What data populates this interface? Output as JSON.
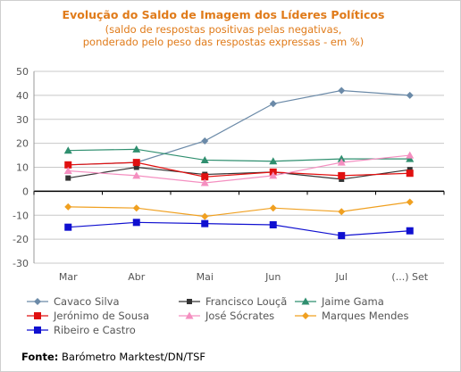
{
  "chart_data": {
    "type": "line",
    "title": "Evolução do Saldo  de Imagem dos Líderes Políticos",
    "subtitle_line1": "(saldo de respostas positivas pelas negativas,",
    "subtitle_line2": "ponderado pelo peso das respostas expressas - em %)",
    "categories": [
      "Mar",
      "Abr",
      "Mai",
      "Jun",
      "Jul",
      "(...) Set"
    ],
    "ylim": [
      -30,
      50
    ],
    "yticks": [
      50,
      40,
      30,
      20,
      10,
      0,
      -10,
      -20,
      -30
    ],
    "grid": true,
    "legend_position": "bottom",
    "series": [
      {
        "name": "Cavaco Silva",
        "color": "#6b8aa8",
        "marker": "diamond",
        "values": [
          11,
          12,
          21,
          36.5,
          42,
          40
        ]
      },
      {
        "name": "Francisco Louçã",
        "color": "#333333",
        "marker": "square-small",
        "values": [
          5.5,
          10,
          7,
          8,
          5,
          9
        ]
      },
      {
        "name": "Jaime Gama",
        "color": "#2f8f6f",
        "marker": "triangle",
        "values": [
          17,
          17.5,
          13,
          12.5,
          13.5,
          13.5
        ]
      },
      {
        "name": "Jerónimo de Sousa",
        "color": "#e01010",
        "marker": "square",
        "values": [
          11,
          12,
          6,
          8,
          6.5,
          7.5
        ]
      },
      {
        "name": "José Sócrates",
        "color": "#f48fc0",
        "marker": "triangle",
        "values": [
          8.5,
          6.5,
          3.5,
          6.5,
          12,
          15
        ]
      },
      {
        "name": "Marques Mendes",
        "color": "#f0a020",
        "marker": "diamond",
        "values": [
          -6.5,
          -7,
          -10.5,
          -7,
          -8.5,
          -4.5
        ]
      },
      {
        "name": "Ribeiro e Castro",
        "color": "#1010d0",
        "marker": "square",
        "values": [
          -15,
          -13,
          -13.5,
          -14,
          -18.5,
          -16.5
        ]
      }
    ]
  },
  "source_label": "Fonte:",
  "source_text": " Barómetro Marktest/DN/TSF"
}
